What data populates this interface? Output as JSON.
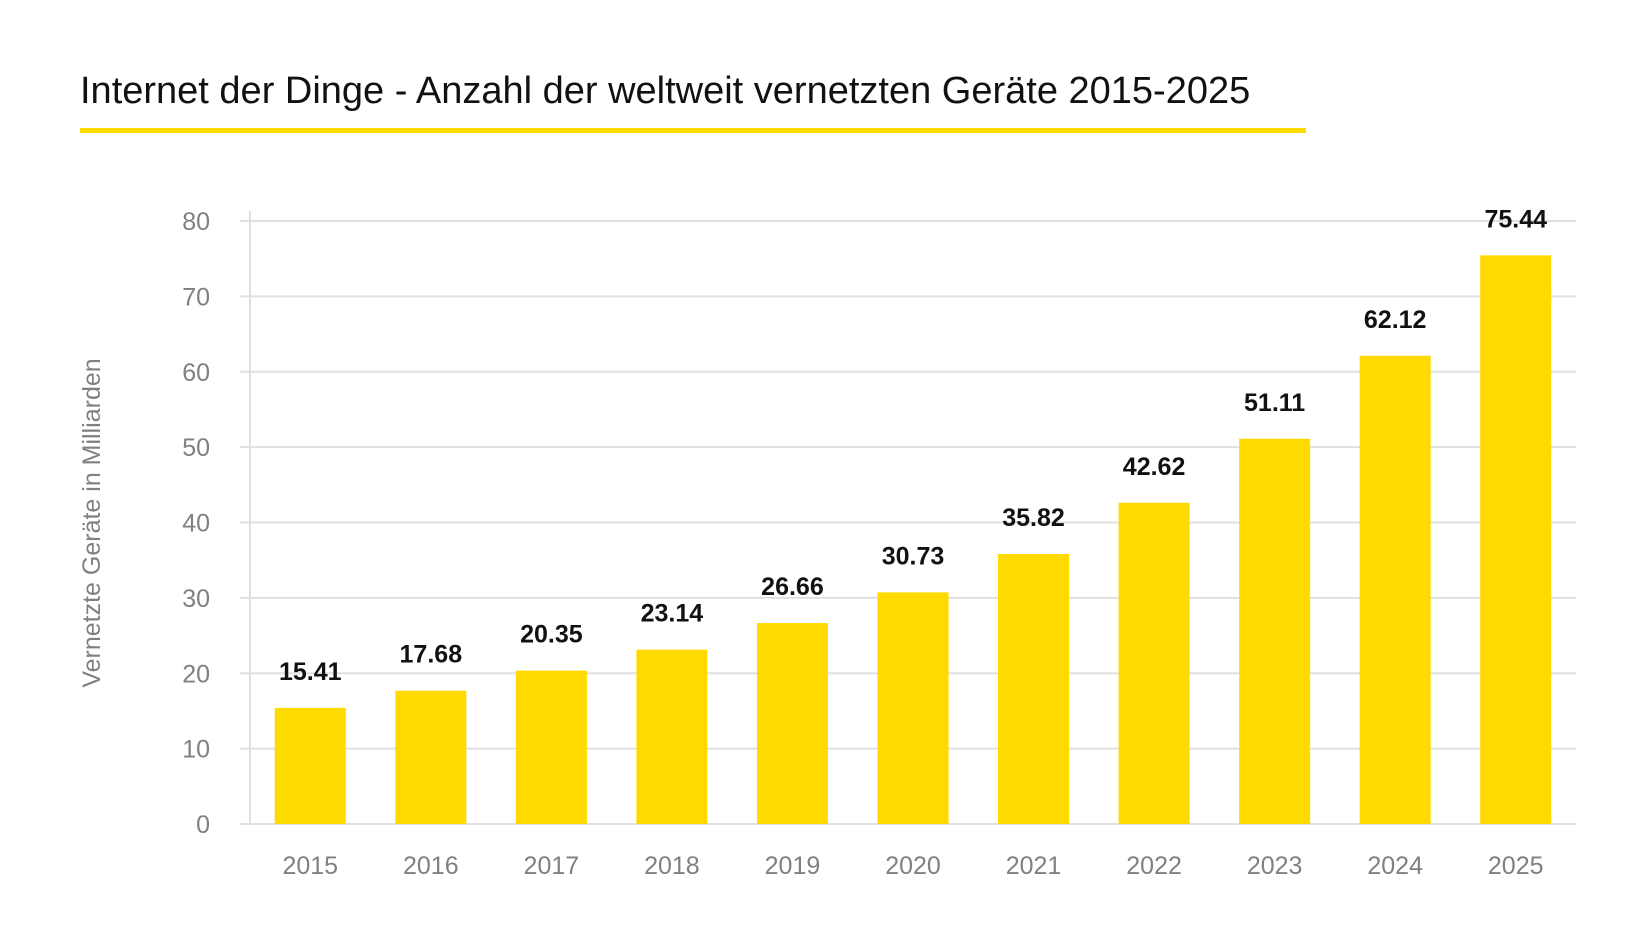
{
  "chart_data": {
    "type": "bar",
    "title": "Internet der Dinge - Anzahl der weltweit vernetzten Geräte 2015-2025",
    "xlabel": "",
    "ylabel": "Vernetzte Geräte in Milliarden",
    "categories": [
      "2015",
      "2016",
      "2017",
      "2018",
      "2019",
      "2020",
      "2021",
      "2022",
      "2023",
      "2024",
      "2025"
    ],
    "values": [
      15.41,
      17.68,
      20.35,
      23.14,
      26.66,
      30.73,
      35.82,
      42.62,
      51.11,
      62.12,
      75.44
    ],
    "ylim": [
      0,
      80
    ],
    "yticks": [
      0,
      10,
      20,
      30,
      40,
      50,
      60,
      70,
      80
    ],
    "grid": true,
    "data_labels": true,
    "colors": {
      "bar": "#FFDA00",
      "accent_underline": "#FFDA00",
      "grid": "#E0E0E0",
      "tick_text": "#808080"
    }
  }
}
